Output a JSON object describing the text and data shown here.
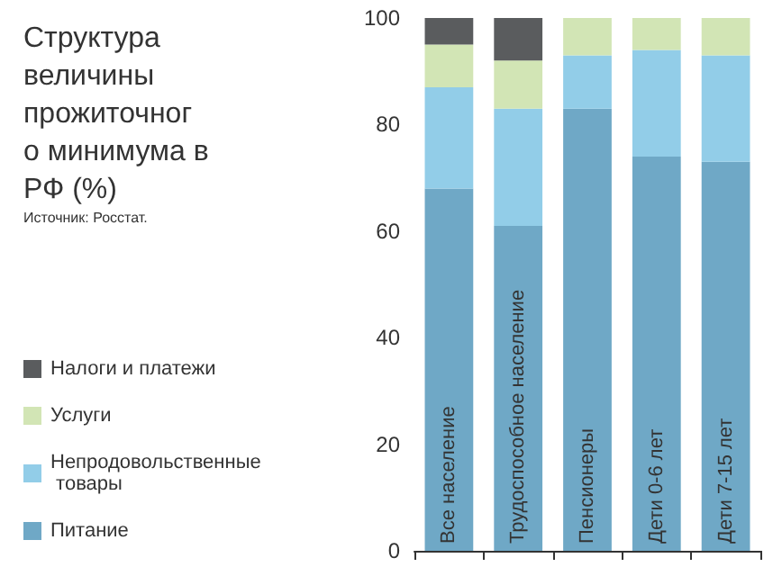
{
  "chart_data": {
    "type": "bar",
    "title": "Структура величины прожиточного минимума в РФ (%)",
    "annotations": [
      "Источник: Росстат."
    ],
    "categories": [
      "Все население",
      "Трудоспособное население",
      "Пенсионеры",
      "Дети 0-6 лет",
      "Дети 7-15 лет"
    ],
    "stacked": true,
    "series": [
      {
        "name": "Питание",
        "color": "#6fa8c6",
        "values": [
          68,
          61,
          83,
          74,
          73
        ]
      },
      {
        "name": "Непродовольственные товары",
        "color": "#92cde8",
        "values": [
          19,
          22,
          10,
          20,
          20
        ]
      },
      {
        "name": "Услуги",
        "color": "#d2e5b5",
        "values": [
          8,
          9,
          7,
          6,
          7
        ]
      },
      {
        "name": "Налоги и платежи",
        "color": "#5a5c5e",
        "values": [
          5,
          8,
          null,
          null,
          null
        ]
      }
    ],
    "ylim": [
      0,
      100
    ],
    "yticks": [
      0,
      20,
      40,
      60,
      80,
      100
    ],
    "grid": false,
    "legend": "left"
  }
}
